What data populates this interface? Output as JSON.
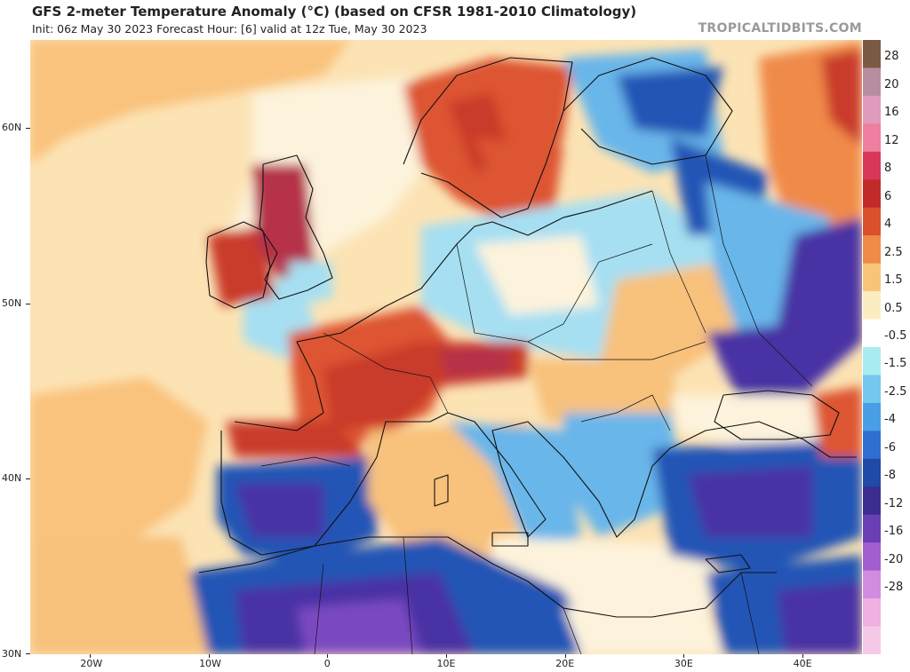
{
  "header": {
    "title": "GFS 2-meter Temperature Anomaly (°C) (based on CFSR 1981-2010 Climatology)",
    "subtitle": "Init: 06z May 30 2023   Forecast Hour: [6]   valid at 12z Tue, May 30 2023",
    "brand": "TROPICALTIDBITS.COM"
  },
  "axes": {
    "lat_labels": [
      "60N",
      "50N",
      "40N",
      "30N"
    ],
    "lon_labels": [
      "20W",
      "10W",
      "0",
      "10E",
      "20E",
      "30E",
      "40E"
    ]
  },
  "colorbar": {
    "labels": [
      "28",
      "20",
      "16",
      "12",
      "8",
      "6",
      "4",
      "2.5",
      "1.5",
      "0.5",
      "-0.5",
      "-1.5",
      "-2.5",
      "-4",
      "-6",
      "-8",
      "-12",
      "-16",
      "-20",
      "-28"
    ],
    "colors": [
      "#7a5a45",
      "#b78ea0",
      "#e09abc",
      "#ef7fa0",
      "#d8375a",
      "#c12a2a",
      "#d9512c",
      "#ef8a47",
      "#f7c57a",
      "#fcedc0",
      "#ffffff",
      "#a9ecf0",
      "#74c8ef",
      "#4a9ee6",
      "#2f6fd0",
      "#1f4aa6",
      "#3a2d8f",
      "#6a3fb4",
      "#a25ecf",
      "#d08de0",
      "#f0b0e0",
      "#f5c8e8"
    ]
  },
  "map": {
    "projection": "equirectangular",
    "lon_range": [
      -25,
      45
    ],
    "lat_range": [
      30,
      65
    ],
    "palette": {
      "ocean_neutral": "#fce3b4",
      "ocean_warm": "#f9c27d",
      "neutral": "#fdf3dc",
      "cool_light": "#a6dff2",
      "cool_mid": "#69b6ea",
      "cool_strong": "#3a7fd6",
      "cold": "#2454b5",
      "very_cold": "#4a33a4",
      "extreme_cold": "#7a49c2",
      "warm_light": "#f8c17c",
      "warm_mid": "#f08a4a",
      "warm_strong": "#dd5530",
      "hot": "#c93a2a",
      "hotter": "#b53049",
      "border": "#111111"
    }
  }
}
